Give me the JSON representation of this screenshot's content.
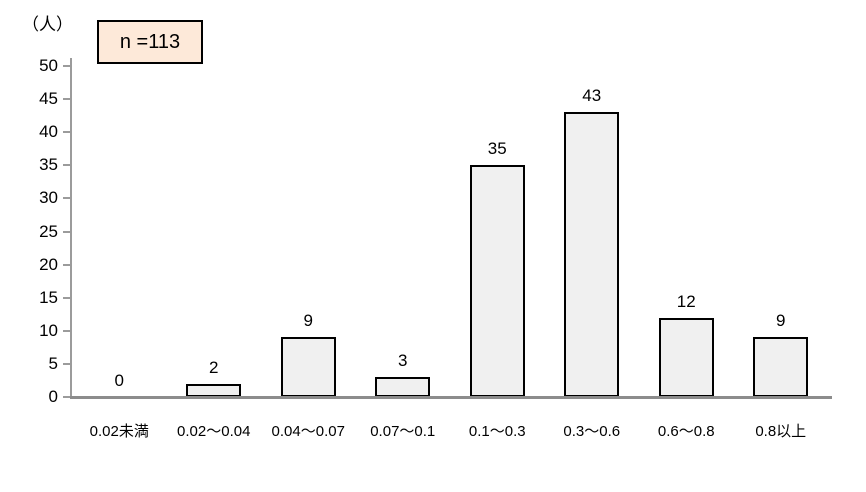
{
  "chart": {
    "unit_label": "（人）",
    "n_label": "n =113",
    "n_box_fill": "#fde9d9",
    "n_box_border": "#000000"
  },
  "chart_data": {
    "type": "bar",
    "categories": [
      "0.02未満",
      "0.02～0.04",
      "0.04～0.07",
      "0.07～0.1",
      "0.1～0.3",
      "0.3～0.6",
      "0.6～0.8",
      "0.8以上"
    ],
    "values": [
      0,
      2,
      9,
      3,
      35,
      43,
      12,
      9
    ],
    "ylabel": "（人）",
    "ylim": [
      0,
      50
    ],
    "ytick_step": 5,
    "grid": false,
    "legend": "none",
    "annotations": [
      "n =113"
    ],
    "bar_fill": "#f0f0f0",
    "bar_border": "#000000",
    "label_color": "#000000",
    "axis_color": "#8c8c8c"
  }
}
